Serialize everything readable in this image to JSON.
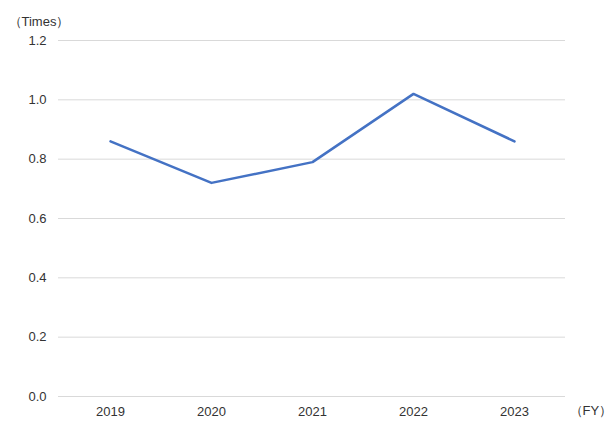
{
  "chart_data": {
    "type": "line",
    "categories": [
      "2019",
      "2020",
      "2021",
      "2022",
      "2023"
    ],
    "values": [
      0.86,
      0.72,
      0.79,
      1.02,
      0.86
    ],
    "color": "#4472c4",
    "ylim": [
      0,
      1.2
    ],
    "yticks": [
      {
        "value": 0,
        "label": "0.0"
      },
      0.2,
      0.4,
      0.6,
      0.8,
      {
        "value": 1,
        "label": "1.0"
      },
      1.2
    ],
    "ylabel": "（Times）",
    "xlabel": "（FY）",
    "grid": true
  }
}
